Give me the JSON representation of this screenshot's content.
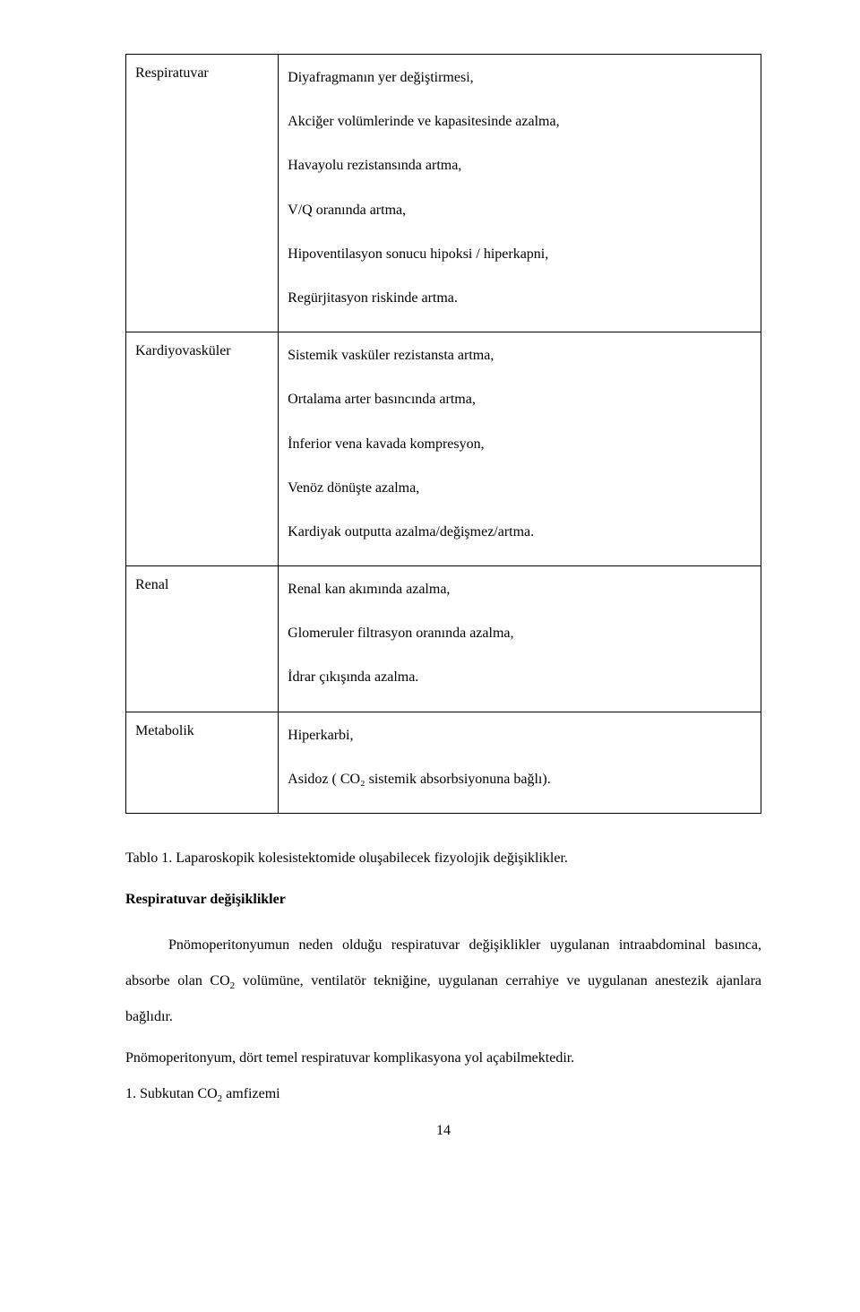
{
  "table": {
    "rows": [
      {
        "label": "Respiratuvar",
        "items": [
          "Diyafragmanın yer değiştirmesi,",
          "Akciğer volümlerinde ve kapasitesinde azalma,",
          "Havayolu rezistansında artma,",
          "V/Q oranında artma,",
          "Hipoventilasyon sonucu hipoksi / hiperkapni,",
          "Regürjitasyon riskinde artma."
        ]
      },
      {
        "label": "Kardiyovasküler",
        "items": [
          "Sistemik vasküler rezistansta artma,",
          "Ortalama arter basıncında artma,",
          "İnferior vena kavada kompresyon,",
          "Venöz dönüşte azalma,",
          "Kardiyak outputta azalma/değişmez/artma."
        ]
      },
      {
        "label": "Renal",
        "items": [
          "Renal kan akımında azalma,",
          "Glomeruler filtrasyon oranında azalma,",
          "İdrar çıkışında azalma."
        ]
      },
      {
        "label": "Metabolik",
        "items": [
          "Hiperkarbi,",
          "Asidoz ( CO₂ sistemik absorbsiyonuna bağlı)."
        ]
      }
    ]
  },
  "caption": "Tablo 1. Laparoskopik kolesistektomide oluşabilecek fizyolojik değişiklikler.",
  "heading": "Respiratuvar değişiklikler",
  "body1_a": "Pnömoperitonyumun neden olduğu respiratuvar değişiklikler uygulanan intraabdominal basınca, absorbe olan CO",
  "body1_b": " volümüne,  ventilatör tekniğine, uygulanan cerrahiye ve uygulanan anestezik ajanlara bağlıdır.",
  "body2": "Pnömoperitonyum,  dört temel respiratuvar  komplikasyona yol açabilmektedir.",
  "body3_a": "1. Subkutan CO",
  "body3_b": " amfizemi",
  "subscript": "2",
  "pageNumber": "14"
}
